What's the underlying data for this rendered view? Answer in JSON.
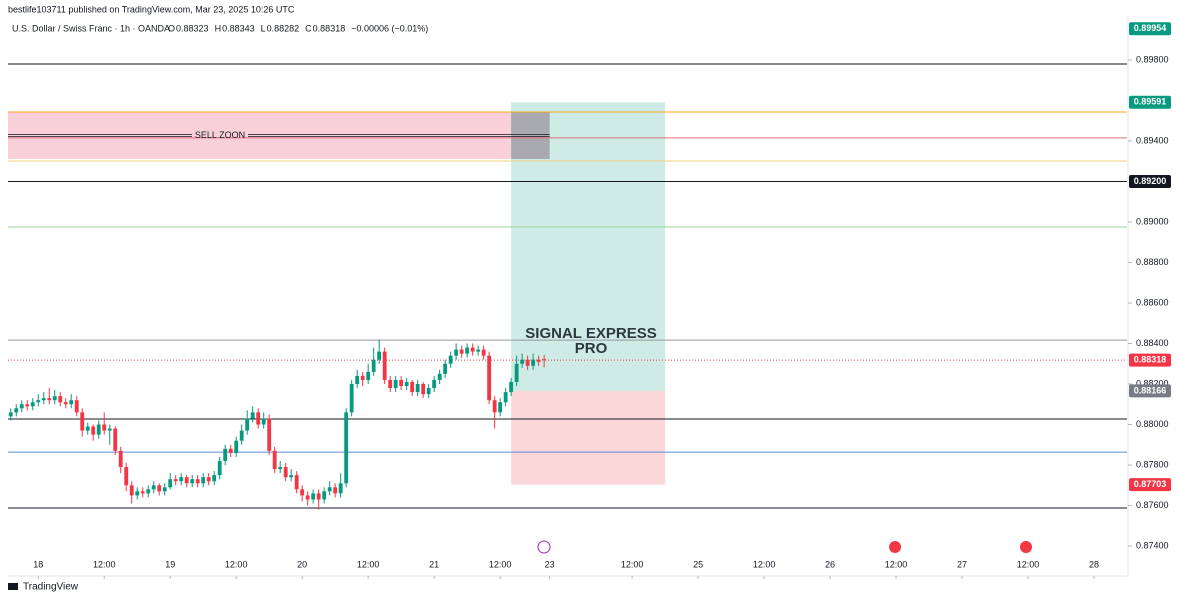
{
  "header": {
    "published": "bestlife103711 published on TradingView.com, Mar 23, 2025 10:26 UTC",
    "symbol": "U.S. Dollar / Swiss Franc · 1h · OANDA",
    "ohlc": [
      {
        "label": "O",
        "value": "0.88323"
      },
      {
        "label": "H",
        "value": "0.88343"
      },
      {
        "label": "L",
        "value": "0.88282"
      },
      {
        "label": "C",
        "value": "0.88318"
      }
    ],
    "change": "−0.00006 (−0.01%)"
  },
  "footer": {
    "brand": "TradingView"
  },
  "chart_data": {
    "type": "candlestick",
    "up_color": "#089981",
    "down_color": "#f23645",
    "xlim": [
      -0.5,
      203
    ],
    "ylim": [
      0.87257,
      0.90022
    ],
    "xticks": [
      {
        "value": 5,
        "label": "18"
      },
      {
        "value": 17,
        "label": "12:00"
      },
      {
        "value": 29,
        "label": "19"
      },
      {
        "value": 41,
        "label": "12:00"
      },
      {
        "value": 53,
        "label": "20"
      },
      {
        "value": 65,
        "label": "12:00"
      },
      {
        "value": 77,
        "label": "21"
      },
      {
        "value": 89,
        "label": "12:00"
      },
      {
        "value": 98,
        "label": "23"
      },
      {
        "value": 113,
        "label": "12:00"
      },
      {
        "value": 125,
        "label": "25"
      },
      {
        "value": 137,
        "label": "12:00"
      },
      {
        "value": 149,
        "label": "26"
      },
      {
        "value": 161,
        "label": "12:00"
      },
      {
        "value": 173,
        "label": "27"
      },
      {
        "value": 185,
        "label": "12:00"
      },
      {
        "value": 197,
        "label": "28"
      }
    ],
    "yticks": [
      {
        "value": 0.874,
        "label": "0.87400"
      },
      {
        "value": 0.876,
        "label": "0.87600"
      },
      {
        "value": 0.878,
        "label": "0.87800"
      },
      {
        "value": 0.88,
        "label": "0.88000"
      },
      {
        "value": 0.882,
        "label": "0.88200"
      },
      {
        "value": 0.884,
        "label": "0.88400"
      },
      {
        "value": 0.886,
        "label": "0.88600"
      },
      {
        "value": 0.888,
        "label": "0.88800"
      },
      {
        "value": 0.89,
        "label": "0.89000"
      },
      {
        "value": 0.894,
        "label": "0.89400"
      },
      {
        "value": 0.898,
        "label": "0.89800"
      }
    ],
    "open": [
      0.8804,
      0.8806,
      0.8808,
      0.881,
      0.8809,
      0.8811,
      0.8812,
      0.8813,
      0.8812,
      0.8814,
      0.8811,
      0.881,
      0.8812,
      0.8806,
      0.8797,
      0.8799,
      0.8795,
      0.88,
      0.8797,
      0.8798,
      0.8787,
      0.8779,
      0.877,
      0.8765,
      0.8767,
      0.8766,
      0.8768,
      0.877,
      0.8767,
      0.8769,
      0.8773,
      0.8772,
      0.8774,
      0.8771,
      0.8773,
      0.8771,
      0.8774,
      0.8772,
      0.8775,
      0.8782,
      0.8788,
      0.8786,
      0.8792,
      0.8797,
      0.8803,
      0.8806,
      0.88,
      0.8803,
      0.8787,
      0.8778,
      0.8779,
      0.8774,
      0.8775,
      0.8768,
      0.8765,
      0.8763,
      0.8766,
      0.8763,
      0.8767,
      0.8769,
      0.8766,
      0.8771,
      0.8806,
      0.882,
      0.8824,
      0.8822,
      0.8826,
      0.8832,
      0.8836,
      0.8822,
      0.8818,
      0.8822,
      0.8819,
      0.8821,
      0.8816,
      0.882,
      0.8815,
      0.8818,
      0.8822,
      0.8825,
      0.883,
      0.8834,
      0.8837,
      0.8835,
      0.8838,
      0.8836,
      0.8837,
      0.8834,
      0.8812,
      0.8806,
      0.8811,
      0.8816,
      0.8821,
      0.883,
      0.8832,
      0.8829,
      0.8832,
      0.88323
    ],
    "high": [
      0.8808,
      0.881,
      0.8812,
      0.8812,
      0.8813,
      0.8815,
      0.8816,
      0.8818,
      0.8817,
      0.8816,
      0.8813,
      0.8815,
      0.8814,
      0.8808,
      0.8801,
      0.88,
      0.8802,
      0.8806,
      0.88,
      0.8799,
      0.8789,
      0.8781,
      0.8772,
      0.8769,
      0.8769,
      0.877,
      0.8772,
      0.8771,
      0.8771,
      0.8776,
      0.8775,
      0.8776,
      0.8775,
      0.8775,
      0.8775,
      0.8776,
      0.8776,
      0.8777,
      0.8784,
      0.879,
      0.879,
      0.8794,
      0.88,
      0.8807,
      0.8809,
      0.8808,
      0.8806,
      0.8805,
      0.8789,
      0.8782,
      0.8781,
      0.8778,
      0.8777,
      0.877,
      0.8767,
      0.8768,
      0.8768,
      0.8769,
      0.8772,
      0.8771,
      0.8776,
      0.8808,
      0.8822,
      0.8827,
      0.8826,
      0.883,
      0.8838,
      0.8842,
      0.8838,
      0.8824,
      0.8824,
      0.8824,
      0.8823,
      0.8822,
      0.8822,
      0.8821,
      0.882,
      0.8824,
      0.8827,
      0.8832,
      0.8836,
      0.884,
      0.8839,
      0.884,
      0.884,
      0.8839,
      0.8839,
      0.8836,
      0.8814,
      0.8813,
      0.8818,
      0.8823,
      0.8834,
      0.8835,
      0.8834,
      0.8835,
      0.8834,
      0.88343
    ],
    "low": [
      0.8802,
      0.8804,
      0.8806,
      0.8807,
      0.8807,
      0.8809,
      0.881,
      0.881,
      0.881,
      0.8809,
      0.8808,
      0.8808,
      0.8804,
      0.8794,
      0.8795,
      0.8792,
      0.8793,
      0.8795,
      0.879,
      0.8785,
      0.8776,
      0.8767,
      0.8761,
      0.8763,
      0.8764,
      0.8764,
      0.8766,
      0.8765,
      0.8765,
      0.8768,
      0.877,
      0.877,
      0.8769,
      0.8769,
      0.8769,
      0.8769,
      0.877,
      0.877,
      0.8773,
      0.878,
      0.8784,
      0.8784,
      0.879,
      0.8795,
      0.8801,
      0.8798,
      0.8798,
      0.8785,
      0.8776,
      0.8776,
      0.8772,
      0.8772,
      0.8766,
      0.8762,
      0.876,
      0.8761,
      0.8758,
      0.8761,
      0.8765,
      0.8764,
      0.8764,
      0.8769,
      0.8804,
      0.8818,
      0.8819,
      0.882,
      0.8824,
      0.883,
      0.882,
      0.8816,
      0.8816,
      0.8817,
      0.8817,
      0.8814,
      0.8814,
      0.8813,
      0.8813,
      0.8816,
      0.882,
      0.8823,
      0.8828,
      0.8832,
      0.8833,
      0.8833,
      0.8834,
      0.8834,
      0.8832,
      0.881,
      0.8798,
      0.8804,
      0.8809,
      0.8814,
      0.8819,
      0.8828,
      0.8827,
      0.8827,
      0.8829,
      0.88282
    ],
    "close": [
      0.8806,
      0.8808,
      0.881,
      0.8809,
      0.8811,
      0.8812,
      0.8813,
      0.8812,
      0.8814,
      0.8811,
      0.881,
      0.8812,
      0.8806,
      0.8797,
      0.8799,
      0.8795,
      0.88,
      0.8797,
      0.8798,
      0.8787,
      0.8779,
      0.877,
      0.8765,
      0.8767,
      0.8766,
      0.8768,
      0.877,
      0.8767,
      0.8769,
      0.8773,
      0.8772,
      0.8774,
      0.8771,
      0.8773,
      0.8771,
      0.8774,
      0.8772,
      0.8775,
      0.8782,
      0.8788,
      0.8786,
      0.8792,
      0.8797,
      0.8803,
      0.8806,
      0.88,
      0.8803,
      0.8787,
      0.8778,
      0.8779,
      0.8774,
      0.8775,
      0.8768,
      0.8765,
      0.8763,
      0.8766,
      0.8763,
      0.8767,
      0.8769,
      0.8766,
      0.8771,
      0.8806,
      0.882,
      0.8824,
      0.8822,
      0.8826,
      0.8832,
      0.8836,
      0.8822,
      0.8818,
      0.8822,
      0.8819,
      0.8821,
      0.8816,
      0.882,
      0.8815,
      0.8818,
      0.8822,
      0.8825,
      0.883,
      0.8834,
      0.8837,
      0.8835,
      0.8838,
      0.8836,
      0.8837,
      0.8834,
      0.8812,
      0.8806,
      0.8811,
      0.8816,
      0.8821,
      0.883,
      0.8832,
      0.8829,
      0.8832,
      0.8831,
      0.88318
    ],
    "levels": [
      {
        "value": 0.8978,
        "color": "#131722"
      },
      {
        "value": 0.89543,
        "color": "#f5a623"
      },
      {
        "value": 0.89415,
        "color": "#e0707a"
      },
      {
        "value": 0.89301,
        "color": "#f2d27a"
      },
      {
        "value": 0.892,
        "color": "#131722"
      },
      {
        "value": 0.88975,
        "color": "#9bd39b"
      },
      {
        "value": 0.88417,
        "color": "#9598a1"
      },
      {
        "value": 0.88318,
        "color": "#f23645",
        "dashed": true
      },
      {
        "value": 0.88027,
        "color": "#131722"
      },
      {
        "value": 0.87864,
        "color": "#5b8bd6"
      },
      {
        "value": 0.87588,
        "color": "#131722"
      }
    ],
    "sell_zone": {
      "label": "SELL ZOON",
      "top": 0.89543,
      "bottom": 0.89311,
      "x_end": 98
    },
    "position": {
      "entry": 0.88166,
      "target": 0.89591,
      "stop": 0.87703,
      "x_start": 91,
      "x_end": 119
    },
    "price_labels": [
      {
        "value": 0.89954,
        "label": "0.89954",
        "color": "#089981"
      },
      {
        "value": 0.89591,
        "label": "0.89591",
        "color": "#089981"
      },
      {
        "value": 0.892,
        "label": "0.89200",
        "color": "#131722"
      },
      {
        "value": 0.88318,
        "label": "0.88318",
        "color": "#f23645"
      },
      {
        "value": 0.88166,
        "label": "0.88166",
        "color": "#787b86"
      },
      {
        "value": 0.87703,
        "label": "0.87703",
        "color": "#f23645"
      }
    ],
    "watermark": [
      "SIGNAL EXPRESS",
      "PRO"
    ]
  }
}
